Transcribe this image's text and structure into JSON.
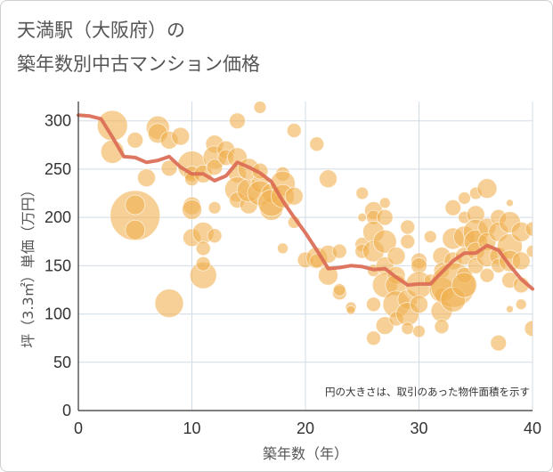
{
  "chart_data": {
    "type": "scatter",
    "title": [
      "天満駅（大阪府）の",
      "築年数別中古マンション価格"
    ],
    "xlabel": "築年数（年）",
    "ylabel": "坪（3.3㎡）単価（万円）",
    "xlim": [
      0,
      40
    ],
    "ylim": [
      0,
      320
    ],
    "xticks": [
      "0",
      "10",
      "20",
      "30",
      "40"
    ],
    "yticks": [
      "0",
      "50",
      "100",
      "150",
      "200",
      "250",
      "300"
    ],
    "grid": true,
    "annotation": "円の大きさは、取引のあった物件面積を示す",
    "colors": {
      "bubble": "#f0b050",
      "line": "#db6b54",
      "grid": "#d3dce6",
      "axis": "#333333"
    },
    "series": [
      {
        "kind": "bubble",
        "fields": [
          "x",
          "y",
          "size"
        ],
        "points": [
          [
            3,
            295,
            72
          ],
          [
            3,
            268,
            42
          ],
          [
            5,
            280,
            20
          ],
          [
            5,
            202,
            196
          ],
          [
            5,
            213,
            30
          ],
          [
            5,
            187,
            30
          ],
          [
            6,
            241,
            25
          ],
          [
            7,
            293,
            42
          ],
          [
            7,
            287,
            30
          ],
          [
            8,
            280,
            25
          ],
          [
            8,
            251,
            20
          ],
          [
            8,
            111,
            64
          ],
          [
            9,
            284,
            25
          ],
          [
            10,
            254,
            64
          ],
          [
            10,
            245,
            20
          ],
          [
            10,
            240,
            16
          ],
          [
            10,
            212,
            25
          ],
          [
            10,
            208,
            30
          ],
          [
            10,
            179,
            25
          ],
          [
            11,
            184,
            36
          ],
          [
            11,
            168,
            16
          ],
          [
            11,
            245,
            25
          ],
          [
            11,
            140,
            56
          ],
          [
            11,
            152,
            16
          ],
          [
            12,
            181,
            16
          ],
          [
            12,
            210,
            12
          ],
          [
            12,
            276,
            25
          ],
          [
            12,
            262,
            42
          ],
          [
            12,
            252,
            20
          ],
          [
            13,
            270,
            25
          ],
          [
            13,
            262,
            20
          ],
          [
            14,
            300,
            20
          ],
          [
            14,
            262,
            30
          ],
          [
            14,
            245,
            25
          ],
          [
            14,
            229,
            49
          ],
          [
            14,
            218,
            20
          ],
          [
            15,
            213,
            25
          ],
          [
            15,
            228,
            42
          ],
          [
            15,
            250,
            36
          ],
          [
            16,
            314,
            12
          ],
          [
            16,
            235,
            25
          ],
          [
            16,
            225,
            49
          ],
          [
            16,
            248,
            20
          ],
          [
            17,
            209,
            42
          ],
          [
            17,
            225,
            30
          ],
          [
            17,
            215,
            56
          ],
          [
            18,
            245,
            16
          ],
          [
            18,
            235,
            49
          ],
          [
            18,
            222,
            42
          ],
          [
            18,
            168,
            9
          ],
          [
            19,
            290,
            16
          ],
          [
            19,
            222,
            25
          ],
          [
            19,
            195,
            12
          ],
          [
            20,
            156,
            20
          ],
          [
            21,
            276,
            16
          ],
          [
            21,
            158,
            36
          ],
          [
            21,
            155,
            16
          ],
          [
            22,
            240,
            25
          ],
          [
            22,
            162,
            25
          ],
          [
            22,
            140,
            30
          ],
          [
            23,
            122,
            16
          ],
          [
            23,
            125,
            12
          ],
          [
            23,
            165,
            16
          ],
          [
            24,
            107,
            9
          ],
          [
            24,
            104,
            6
          ],
          [
            25,
            225,
            12
          ],
          [
            25,
            200,
            6
          ],
          [
            25,
            172,
            16
          ],
          [
            25,
            165,
            16
          ],
          [
            26,
            207,
            25
          ],
          [
            26,
            200,
            16
          ],
          [
            26,
            185,
            36
          ],
          [
            26,
            165,
            36
          ],
          [
            26,
            145,
            12
          ],
          [
            26,
            110,
            16
          ],
          [
            26,
            75,
            16
          ],
          [
            27,
            215,
            9
          ],
          [
            27,
            200,
            20
          ],
          [
            27,
            175,
            42
          ],
          [
            27,
            150,
            25
          ],
          [
            27,
            130,
            49
          ],
          [
            27,
            88,
            25
          ],
          [
            28,
            160,
            25
          ],
          [
            28,
            140,
            25
          ],
          [
            28,
            130,
            36
          ],
          [
            28,
            110,
            56
          ],
          [
            28,
            95,
            16
          ],
          [
            29,
            190,
            16
          ],
          [
            29,
            175,
            16
          ],
          [
            29,
            115,
            30
          ],
          [
            29,
            100,
            42
          ],
          [
            29,
            85,
            12
          ],
          [
            30,
            155,
            20
          ],
          [
            30,
            150,
            20
          ],
          [
            30,
            130,
            56
          ],
          [
            30,
            110,
            25
          ],
          [
            30,
            82,
            12
          ],
          [
            31,
            180,
            12
          ],
          [
            31,
            135,
            12
          ],
          [
            32,
            160,
            25
          ],
          [
            32,
            145,
            20
          ],
          [
            32,
            125,
            49
          ],
          [
            32,
            103,
            36
          ],
          [
            32,
            120,
            16
          ],
          [
            32,
            87,
            16
          ],
          [
            33,
            210,
            20
          ],
          [
            33,
            178,
            36
          ],
          [
            33,
            155,
            25
          ],
          [
            33,
            130,
            156
          ],
          [
            33,
            115,
            49
          ],
          [
            34,
            220,
            12
          ],
          [
            34,
            200,
            12
          ],
          [
            34,
            180,
            36
          ],
          [
            34,
            160,
            25
          ],
          [
            34,
            140,
            20
          ],
          [
            34,
            130,
            49
          ],
          [
            35,
            225,
            12
          ],
          [
            35,
            203,
            25
          ],
          [
            35,
            185,
            49
          ],
          [
            35,
            175,
            42
          ],
          [
            35,
            165,
            25
          ],
          [
            35,
            150,
            20
          ],
          [
            36,
            230,
            30
          ],
          [
            36,
            190,
            25
          ],
          [
            36,
            175,
            25
          ],
          [
            36,
            160,
            36
          ],
          [
            36,
            140,
            16
          ],
          [
            37,
            70,
            20
          ],
          [
            37,
            200,
            20
          ],
          [
            37,
            185,
            30
          ],
          [
            37,
            160,
            25
          ],
          [
            37,
            150,
            16
          ],
          [
            38,
            215,
            4
          ],
          [
            38,
            195,
            36
          ],
          [
            38,
            170,
            49
          ],
          [
            38,
            155,
            36
          ],
          [
            38,
            135,
            20
          ],
          [
            38,
            105,
            4
          ],
          [
            39,
            185,
            30
          ],
          [
            39,
            155,
            25
          ],
          [
            39,
            130,
            20
          ],
          [
            39,
            110,
            9
          ],
          [
            40,
            188,
            16
          ],
          [
            40,
            85,
            20
          ],
          [
            40,
            165,
            12
          ]
        ]
      },
      {
        "kind": "line",
        "x": [
          0,
          1,
          2,
          3,
          4,
          5,
          6,
          7,
          8,
          9,
          10,
          11,
          12,
          13,
          14,
          15,
          16,
          17,
          18,
          19,
          20,
          21,
          22,
          23,
          24,
          25,
          26,
          27,
          28,
          29,
          30,
          31,
          32,
          33,
          34,
          35,
          36,
          37,
          38,
          39,
          40
        ],
        "y": [
          306,
          305,
          302,
          283,
          263,
          262,
          257,
          259,
          263,
          252,
          245,
          245,
          238,
          243,
          257,
          252,
          246,
          237,
          217,
          200,
          184,
          166,
          147,
          148,
          150,
          149,
          146,
          147,
          138,
          130,
          131,
          131,
          143,
          155,
          163,
          163,
          171,
          166,
          150,
          136,
          126
        ]
      }
    ]
  }
}
